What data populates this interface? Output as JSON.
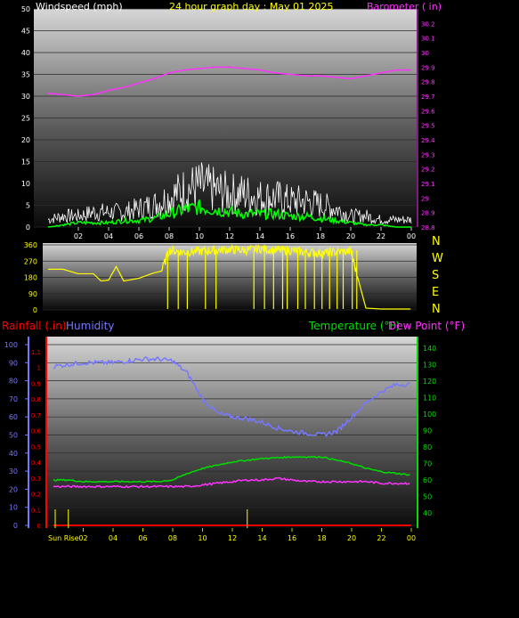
{
  "chart_data": [
    {
      "type": "line",
      "title": "24 hour graph day : May 01 2025",
      "left_axis_label": "Windspeed (mph)",
      "right_axis_label": "Barometer ( in)",
      "ylim_left": [
        0,
        50
      ],
      "yticks_left": [
        "0",
        "5",
        "10",
        "15",
        "20",
        "25",
        "30",
        "35",
        "40",
        "45",
        "50"
      ],
      "ylim_right": [
        28.8,
        30.3
      ],
      "yticks_right": [
        "28.8",
        "28.9",
        "29",
        "29.1",
        "29.2",
        "29.3",
        "29.4",
        "29.5",
        "29.6",
        "29.7",
        "29.8",
        "29.9",
        "30",
        "30.1",
        "30.2"
      ],
      "xticks": [
        "02",
        "04",
        "06",
        "08",
        "10",
        "12",
        "14",
        "16",
        "18",
        "20",
        "22",
        "00"
      ],
      "colors": {
        "wind_gust": "#ffffff",
        "wind_avg": "#00ff00",
        "barometer": "#ff33ff",
        "left_text": "#ffffff",
        "title_text": "#ffff00",
        "right_text": "#ff33ff"
      },
      "series": [
        {
          "x": [
            0,
            1,
            2,
            3,
            4,
            5,
            6,
            7,
            8,
            9,
            10,
            11,
            12,
            13,
            14,
            15,
            16,
            17,
            18,
            19,
            20,
            21,
            22,
            23,
            24
          ],
          "values": [
            29.72,
            29.71,
            29.7,
            29.71,
            29.74,
            29.76,
            29.79,
            29.82,
            29.86,
            29.88,
            29.89,
            29.9,
            29.9,
            29.89,
            29.88,
            29.86,
            29.85,
            29.84,
            29.84,
            29.83,
            29.82,
            29.84,
            29.86,
            29.88,
            29.88
          ]
        },
        {
          "x": [
            0,
            1,
            2,
            3,
            4,
            5,
            6,
            7,
            8,
            9,
            10,
            11,
            12,
            13,
            14,
            15,
            16,
            17,
            18,
            19,
            20,
            21,
            22,
            23,
            24
          ],
          "values": [
            2,
            3,
            3,
            4,
            4,
            4,
            5,
            6,
            8,
            10,
            11,
            10,
            9,
            9,
            8,
            8,
            7,
            7,
            6,
            5,
            3,
            3,
            2,
            2,
            2
          ]
        },
        {
          "x": [
            0,
            1,
            2,
            3,
            4,
            5,
            6,
            7,
            8,
            9,
            10,
            11,
            12,
            13,
            14,
            15,
            16,
            17,
            18,
            19,
            20,
            21,
            22,
            23,
            24
          ],
          "values": [
            0,
            0.5,
            1,
            1,
            1,
            1.5,
            1.5,
            2,
            3,
            4,
            4.5,
            4,
            3.5,
            3,
            3,
            3,
            2.5,
            2.5,
            2,
            1.5,
            1,
            0.5,
            0.5,
            0,
            0
          ]
        }
      ]
    },
    {
      "type": "scatter",
      "left_yticks": [
        "360",
        "270",
        "180",
        "90",
        "0"
      ],
      "ylim": [
        0,
        360
      ],
      "right_labels": [
        "N",
        "W",
        "S",
        "E",
        "N"
      ],
      "colors": {
        "direction": "#ffff00",
        "text": "#ffff00"
      },
      "series": [
        {
          "x": [
            0,
            1,
            2,
            3,
            3.5,
            4,
            4.5,
            5,
            6,
            7,
            7.5,
            8,
            9,
            10,
            11,
            12,
            13,
            14,
            15,
            16,
            17,
            18,
            19,
            20,
            21,
            22,
            23,
            24
          ],
          "values": [
            225,
            225,
            200,
            200,
            160,
            165,
            240,
            160,
            175,
            205,
            215,
            330,
            320,
            325,
            330,
            335,
            330,
            340,
            330,
            330,
            320,
            315,
            320,
            325,
            10,
            5,
            5,
            5
          ]
        }
      ]
    },
    {
      "type": "line",
      "labels": {
        "rainfall": "Rainfall (.in)",
        "humidity": "Humidity",
        "temperature": "Temperature (°F)",
        "dewpoint": "Dew Point (°F)",
        "sunrise": "Sun Rise"
      },
      "humidity_ticks": [
        "0",
        "10",
        "20",
        "30",
        "40",
        "50",
        "60",
        "70",
        "80",
        "90",
        "100"
      ],
      "rain_ticks": [
        "0",
        "0.1",
        "0.2",
        "0.3",
        "0.4",
        "0.5",
        "0.6",
        "0.7",
        "0.8",
        "0.9",
        "1",
        "1.1"
      ],
      "temp_ticks": [
        "40",
        "50",
        "60",
        "70",
        "80",
        "90",
        "100",
        "110",
        "120",
        "130",
        "140"
      ],
      "xticks": [
        "02",
        "04",
        "06",
        "08",
        "10",
        "12",
        "14",
        "16",
        "18",
        "20",
        "22",
        "00"
      ],
      "colors": {
        "humidity": "#7777ff",
        "temperature": "#00dd00",
        "dewpoint": "#ff33ff",
        "rainfall": "#ff0000",
        "sunrise": "#ffff00",
        "temp_text": "#00dd00",
        "dew_text": "#ff33ff",
        "rain_text": "#ff0000",
        "hum_text": "#7777ff"
      },
      "humidity_series": {
        "x": [
          0,
          1,
          2,
          3,
          4,
          5,
          6,
          7,
          8,
          9,
          10,
          11,
          12,
          13,
          14,
          15,
          16,
          17,
          18,
          19,
          20,
          21,
          22,
          23,
          24
        ],
        "values": [
          88,
          89,
          90,
          90,
          90,
          91,
          92,
          92,
          91,
          84,
          70,
          62,
          60,
          59,
          57,
          54,
          52,
          51,
          50,
          52,
          60,
          68,
          74,
          78,
          78
        ]
      },
      "temperature_series": {
        "x": [
          0,
          1,
          2,
          3,
          4,
          5,
          6,
          7,
          8,
          9,
          10,
          11,
          12,
          13,
          14,
          15,
          16,
          17,
          18,
          19,
          20,
          21,
          22,
          23,
          24
        ],
        "values": [
          60,
          60,
          59,
          59,
          59,
          59,
          59,
          59,
          60,
          64,
          67,
          69,
          71,
          72,
          73,
          73.5,
          74,
          74,
          74,
          72,
          70,
          67,
          65,
          64,
          63
        ]
      },
      "dewpoint_series": {
        "x": [
          0,
          1,
          2,
          3,
          4,
          5,
          6,
          7,
          8,
          9,
          10,
          11,
          12,
          13,
          14,
          15,
          16,
          17,
          18,
          19,
          20,
          21,
          22,
          23,
          24
        ],
        "values": [
          56,
          56,
          56,
          56,
          56,
          56,
          56,
          56,
          56,
          56,
          57,
          58,
          59,
          60,
          60,
          61,
          60,
          59,
          59,
          59,
          59,
          59,
          58,
          58,
          58
        ]
      },
      "rainfall_series": {
        "x": [
          0,
          24
        ],
        "values": [
          0,
          0
        ]
      },
      "sunrise_marks_x": [
        1,
        13
      ]
    }
  ]
}
